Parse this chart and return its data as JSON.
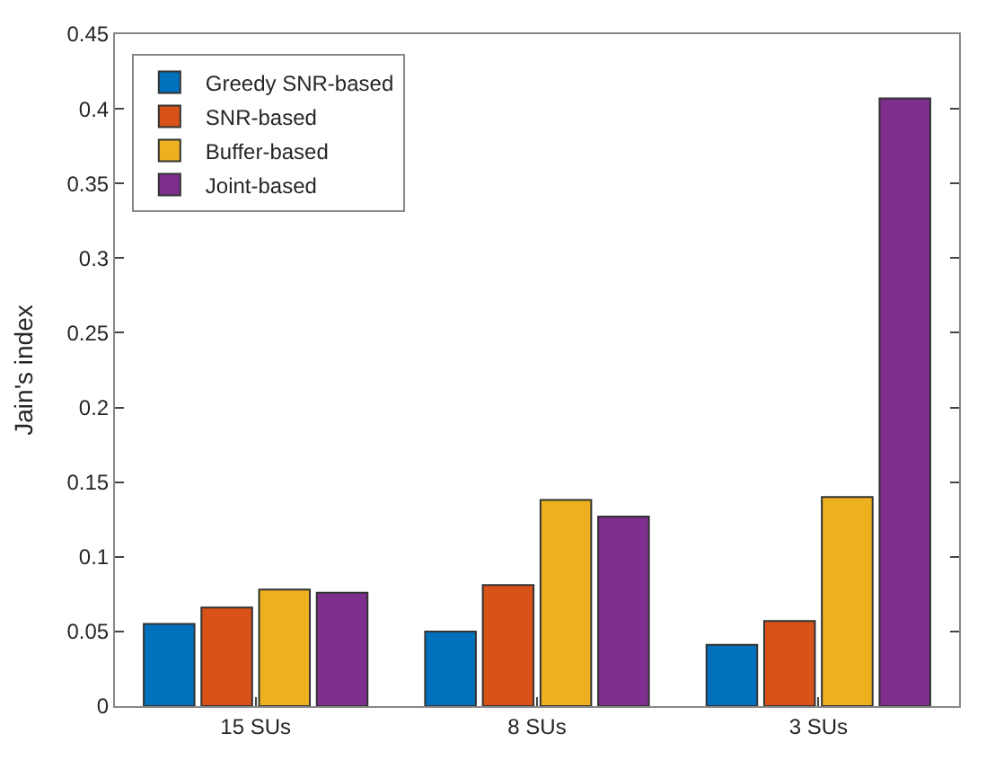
{
  "chart_data": {
    "type": "bar",
    "ylabel": "Jain's index",
    "categories": [
      "15 SUs",
      "8 SUs",
      "3 SUs"
    ],
    "series": [
      {
        "name": "Greedy SNR-based",
        "color": "#0072bd",
        "values": [
          0.055,
          0.05,
          0.041
        ]
      },
      {
        "name": "SNR-based",
        "color": "#d95319",
        "values": [
          0.066,
          0.081,
          0.057
        ]
      },
      {
        "name": "Buffer-based",
        "color": "#edb120",
        "values": [
          0.078,
          0.138,
          0.14
        ]
      },
      {
        "name": "Joint-based",
        "color": "#7e2f8e",
        "values": [
          0.076,
          0.127,
          0.407
        ]
      }
    ],
    "ylim": [
      0,
      0.45
    ],
    "yticks": [
      0,
      0.05,
      0.1,
      0.15,
      0.2,
      0.25,
      0.3,
      0.35,
      0.4,
      0.45
    ],
    "grid": false,
    "legend": "top left"
  }
}
